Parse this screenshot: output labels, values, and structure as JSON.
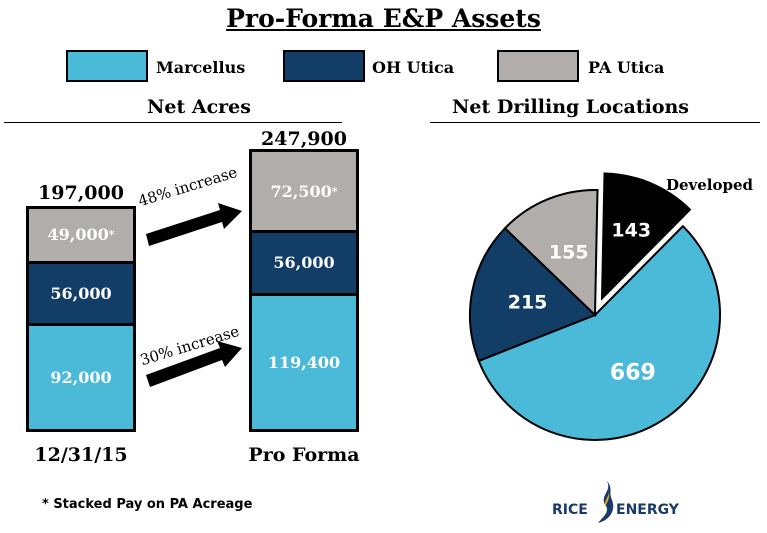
{
  "title": "Pro-Forma E&P Assets",
  "legend": [
    {
      "label": "Marcellus",
      "color": "#4bbad9"
    },
    {
      "label": "OH Utica",
      "color": "#123d66"
    },
    {
      "label": "PA Utica",
      "color": "#b0adaa"
    }
  ],
  "colors": {
    "developed": "#000000",
    "border": "#000000",
    "logo_blue": "#1a3a6b",
    "logo_flame": "#f2b01e"
  },
  "footnote": "* Stacked Pay on PA Acreage",
  "logo": {
    "left": "RICE",
    "right": "ENERGY"
  },
  "chart_data": [
    {
      "type": "bar",
      "stacked": true,
      "title": "Net Acres",
      "categories": [
        "12/31/15",
        "Pro Forma"
      ],
      "series": [
        {
          "name": "Marcellus",
          "values": [
            92000,
            119400
          ],
          "labels": [
            "92,000",
            "119,400"
          ]
        },
        {
          "name": "OH Utica",
          "values": [
            56000,
            56000
          ],
          "labels": [
            "56,000",
            "56,000"
          ]
        },
        {
          "name": "PA Utica",
          "values": [
            49000,
            72500
          ],
          "labels": [
            "49,000",
            "72,500"
          ],
          "marker": "*"
        }
      ],
      "totals": [
        197000,
        247900
      ],
      "total_labels": [
        "197,000",
        "247,900"
      ],
      "annotations": [
        {
          "text": "48% increase",
          "series": "PA Utica"
        },
        {
          "text": "30% increase",
          "series": "Marcellus"
        }
      ]
    },
    {
      "type": "pie",
      "title": "Net Drilling Locations",
      "slices": [
        {
          "name": "Developed",
          "value": 143,
          "label": "143",
          "exploded": true
        },
        {
          "name": "Marcellus",
          "value": 669,
          "label": "669"
        },
        {
          "name": "OH Utica",
          "value": 215,
          "label": "215"
        },
        {
          "name": "PA Utica",
          "value": 155,
          "label": "155"
        }
      ],
      "annotations": [
        {
          "text": "Developed"
        }
      ]
    }
  ]
}
